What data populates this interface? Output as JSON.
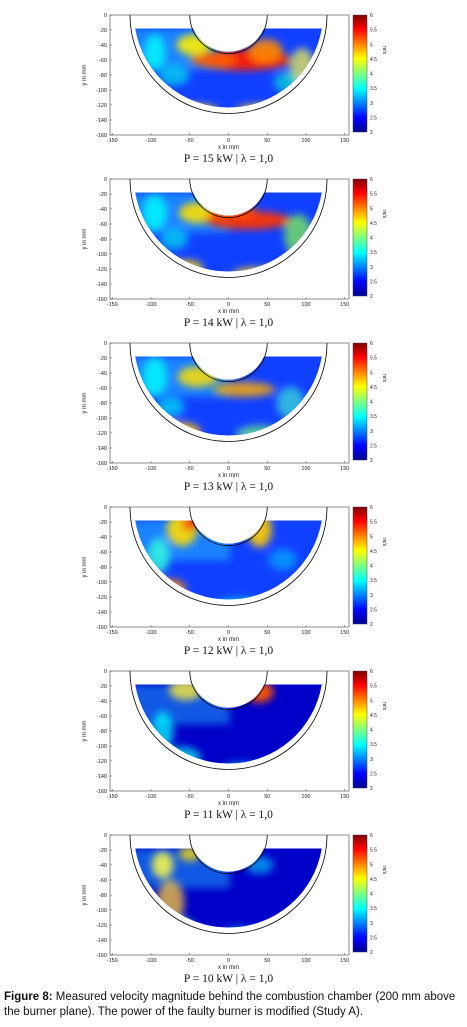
{
  "caption": {
    "label": "Figure 8:",
    "text": "Measured velocity magnitude behind the combustion chamber (200 mm above the burner plane). The power of the faulty burner is modified (Study A)."
  },
  "axes": {
    "xlabel": "x in mm",
    "ylabel": "y in mm",
    "xticks": [
      "-150",
      "-100",
      "-50",
      "0",
      "50",
      "100",
      "150"
    ],
    "yticks": [
      "0",
      "-20",
      "-40",
      "-60",
      "-80",
      "-100",
      "-120",
      "-140",
      "-160"
    ]
  },
  "colorbar": {
    "ticks": [
      "6",
      "5.5",
      "5",
      "4.5",
      "4",
      "3.5",
      "3",
      "2.5",
      "2"
    ],
    "unit": "m/s"
  },
  "panels": [
    {
      "id": "p15",
      "title": "P = 15 kW | λ = 1,0"
    },
    {
      "id": "p14",
      "title": "P = 14 kW | λ = 1,0"
    },
    {
      "id": "p13",
      "title": "P = 13 kW | λ = 1,0"
    },
    {
      "id": "p12",
      "title": "P = 12 kW | λ = 1,0"
    },
    {
      "id": "p11",
      "title": "P = 11 kW | λ = 1,0"
    },
    {
      "id": "p10",
      "title": "P = 10 kW | λ = 1,0"
    }
  ],
  "chart_data": [
    {
      "type": "heatmap",
      "title": "P = 15 kW | λ = 1,0",
      "xlabel": "x in mm",
      "ylabel": "y in mm",
      "xlim": [
        -160,
        160
      ],
      "ylim": [
        -160,
        0
      ],
      "colorbar_range": [
        2,
        6
      ]
    },
    {
      "type": "heatmap",
      "title": "P = 14 kW | λ = 1,0",
      "xlabel": "x in mm",
      "ylabel": "y in mm",
      "xlim": [
        -160,
        160
      ],
      "ylim": [
        -160,
        0
      ],
      "colorbar_range": [
        2,
        6
      ]
    },
    {
      "type": "heatmap",
      "title": "P = 13 kW | λ = 1,0",
      "xlabel": "x in mm",
      "ylabel": "y in mm",
      "xlim": [
        -160,
        160
      ],
      "ylim": [
        -160,
        0
      ],
      "colorbar_range": [
        2,
        6
      ]
    },
    {
      "type": "heatmap",
      "title": "P = 12 kW | λ = 1,0",
      "xlabel": "x in mm",
      "ylabel": "y in mm",
      "xlim": [
        -160,
        160
      ],
      "ylim": [
        -160,
        0
      ],
      "colorbar_range": [
        2,
        6
      ]
    },
    {
      "type": "heatmap",
      "title": "P = 11 kW | λ = 1,0",
      "xlabel": "x in mm",
      "ylabel": "y in mm",
      "xlim": [
        -160,
        160
      ],
      "ylim": [
        -160,
        0
      ],
      "colorbar_range": [
        2,
        6
      ]
    },
    {
      "type": "heatmap",
      "title": "P = 10 kW | λ = 1,0",
      "xlabel": "x in mm",
      "ylabel": "y in mm",
      "xlim": [
        -160,
        160
      ],
      "ylim": [
        -160,
        0
      ],
      "colorbar_range": [
        2,
        6
      ]
    }
  ]
}
